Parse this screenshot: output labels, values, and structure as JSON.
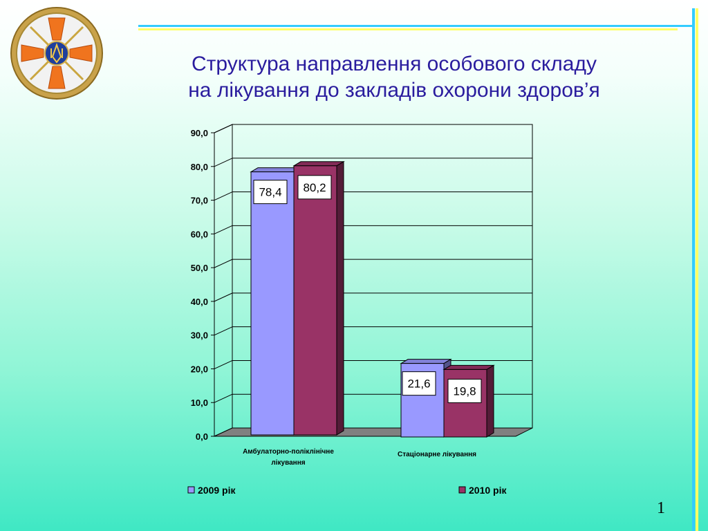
{
  "slide": {
    "title_line1": "Структура направлення особового складу",
    "title_line2": "на лікування до закладів охорони здоров’я",
    "page_number": "1",
    "logo_icon": "emergency-service-emblem-icon"
  },
  "colors": {
    "title": "#2a1c9e",
    "series_2009": "#9999ff",
    "series_2010": "#993366",
    "deco_blue": "#33ccff",
    "deco_yellow": "#ffff66"
  },
  "chart_data": {
    "type": "bar",
    "title": "",
    "xlabel": "",
    "ylabel": "",
    "ylim": [
      0,
      90
    ],
    "yticks": [
      "0,0",
      "10,0",
      "20,0",
      "30,0",
      "40,0",
      "50,0",
      "60,0",
      "70,0",
      "80,0",
      "90,0"
    ],
    "categories": [
      [
        "Амбулаторно-поліклінічне",
        "лікування"
      ],
      [
        "Стаціонарне лікування"
      ]
    ],
    "series": [
      {
        "name": "2009 рік",
        "values": [
          78.4,
          21.6
        ],
        "labels": [
          "78,4",
          "21,6"
        ],
        "color": "#9999ff"
      },
      {
        "name": "2010 рік",
        "values": [
          80.2,
          19.8
        ],
        "labels": [
          "80,2",
          "19,8"
        ],
        "color": "#993366"
      }
    ],
    "grid": true,
    "legend_position": "bottom",
    "style": "3d-clustered-column"
  }
}
